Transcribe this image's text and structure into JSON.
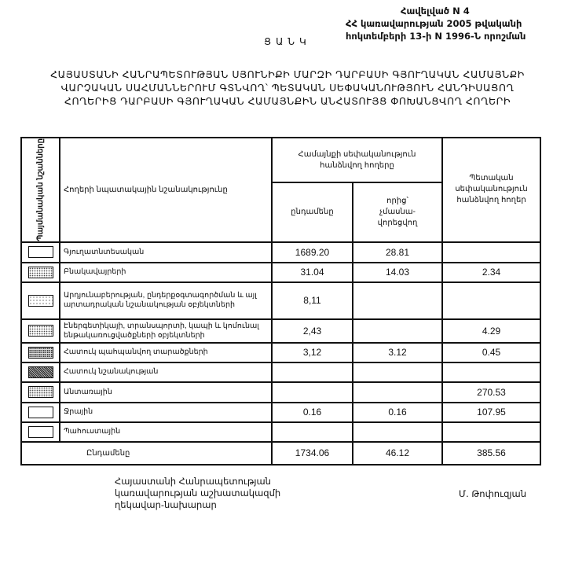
{
  "annex": {
    "line1": "Հավելված N 4",
    "line2": "ՀՀ կառավարության 2005 թվականի",
    "line3": "հոկտեմբերի 13-ի N 1996-Ն որոշման"
  },
  "list_title": "ՑԱՆԿ",
  "main_title": [
    "ՀԱՅԱՍՏԱՆԻ ՀԱՆՐԱՊԵՏՈՒԹՅԱՆ ՍՅՈՒՆԻՔԻ ՄԱՐԶԻ ԴԱՐԲԱՍԻ ԳՅՈՒՂԱԿԱՆ ՀԱՄԱՅՆՔԻ",
    "ՎԱՐՉԱԿԱՆ ՍԱՀՄԱՆՆԵՐՈՒՄ ԳՏՆՎՈՂ՝ ՊԵՏԱԿԱՆ ՍԵՓԱԿԱՆՈՒԹՅՈՒՆ ՀԱՆԴԻՍԱՑՈՂ",
    "ՀՈՂԵՐԻՑ ԴԱՐԲԱՍԻ ԳՅՈՒՂԱԿԱՆ ՀԱՄԱՅՆՔԻՆ ԱՆՀԱՏՈՒՅՑ ՓՈԽԱՆՑՎՈՂ ՀՈՂԵՐԻ"
  ],
  "table": {
    "headers": {
      "symbols": "Պայմանական նշանները",
      "purpose": "Հողերի նպատակային նշանակությունը",
      "community": "Համայնքի սեփականություն հանձնվող հողերը",
      "total": "ընդամենը",
      "of_which": "որից՝ չմասնա-վորեցվող",
      "state": "Պետական սեփականություն հանձնվող հողեր"
    },
    "rows": [
      {
        "pattern": "none",
        "label": "Գյուղատնտեսական",
        "total": "1689.20",
        "of_which": "28.81",
        "state": ""
      },
      {
        "pattern": "dotted",
        "label": "Բնակավայրերի",
        "total": "31.04",
        "of_which": "14.03",
        "state": "2.34"
      },
      {
        "pattern": "light-dotted",
        "label": "Արդյունաբերության, ընդերքօգտագործման և այլ արտադրական նշանակության օբյեկտների",
        "total": "8,11",
        "of_which": "",
        "state": ""
      },
      {
        "pattern": "dotted",
        "label": "Էներգետիկայի, տրանսպորտի, կապի և կոմունալ ենթակառուցվածքների օբյեկտների",
        "total": "2,43",
        "of_which": "",
        "state": "4.29"
      },
      {
        "pattern": "dense-dotted",
        "label": "Հատուկ պահպանվող տարածքների",
        "total": "3,12",
        "of_which": "3.12",
        "state": "0.45"
      },
      {
        "pattern": "crosshatch",
        "label": "Հատուկ նշանակության",
        "total": "",
        "of_which": "",
        "state": ""
      },
      {
        "pattern": "grid-dotted",
        "label": "Անտառային",
        "total": "",
        "of_which": "",
        "state": "270.53"
      },
      {
        "pattern": "none",
        "label": "Ջրային",
        "total": "0.16",
        "of_which": "0.16",
        "state": "107.95"
      },
      {
        "pattern": "none",
        "label": "Պահուստային",
        "total": "",
        "of_which": "",
        "state": ""
      }
    ],
    "sum_row": {
      "label": "Ընդամենը",
      "total": "1734.06",
      "of_which": "46.12",
      "state": "385.56"
    }
  },
  "signature": {
    "position": [
      "Հայաստանի Հանրապետության",
      "կառավարության աշխատակազմի",
      "ղեկավար-նախարար"
    ],
    "name": "Մ. Թոփուզյան"
  }
}
